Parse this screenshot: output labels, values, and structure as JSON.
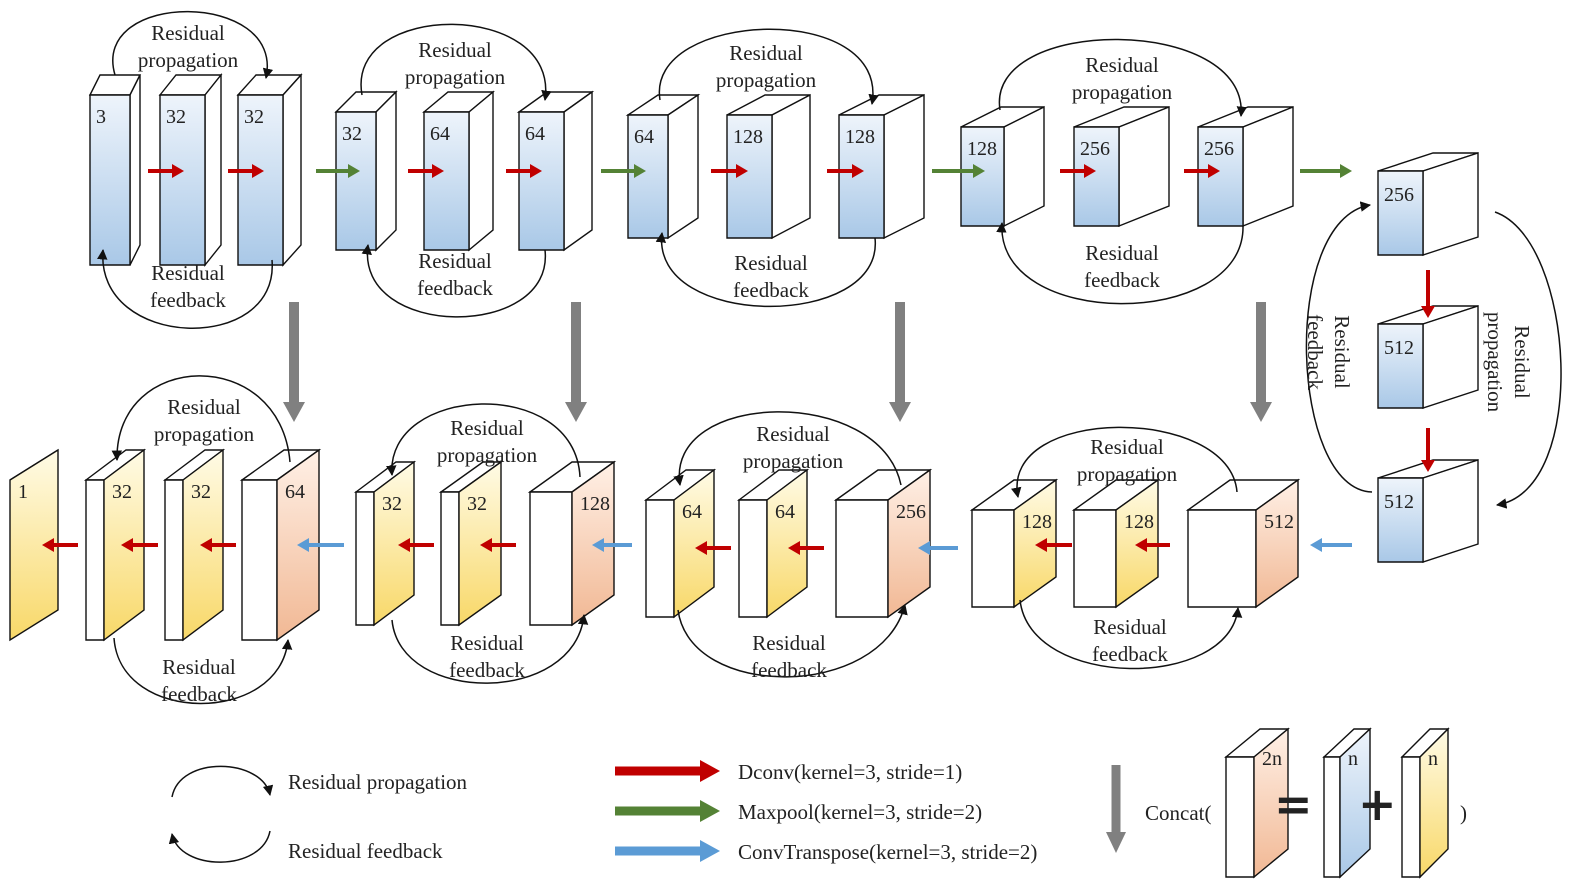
{
  "colors": {
    "blue_light": "#eef4fb",
    "blue_dark": "#a9c8e7",
    "yellow_light": "#fffbe6",
    "yellow_dark": "#f8d868",
    "orange_light": "#fff0e6",
    "orange_dark": "#f1b894",
    "dconv_arrow": "#c00000",
    "maxpool_arrow": "#548235",
    "convtranspose_arrow": "#5b9bd5",
    "concat_arrow": "#808080"
  },
  "labels": {
    "residual": "Residual",
    "propagation": "propagation",
    "feedback": "feedback"
  },
  "encoder": [
    {
      "name": "enc-stage-1",
      "channels": [
        "3",
        "32",
        "32"
      ]
    },
    {
      "name": "enc-stage-2",
      "channels": [
        "32",
        "64",
        "64"
      ]
    },
    {
      "name": "enc-stage-3",
      "channels": [
        "64",
        "128",
        "128"
      ]
    },
    {
      "name": "enc-stage-4",
      "channels": [
        "128",
        "256",
        "256"
      ]
    }
  ],
  "bottleneck": {
    "channels": [
      "256",
      "512",
      "512"
    ]
  },
  "decoder": [
    {
      "name": "dec-stage-4",
      "channels": [
        "512",
        "128",
        "128"
      ]
    },
    {
      "name": "dec-stage-3",
      "channels": [
        "256",
        "64",
        "64"
      ]
    },
    {
      "name": "dec-stage-2",
      "channels": [
        "128",
        "32",
        "32"
      ]
    },
    {
      "name": "dec-stage-1",
      "channels": [
        "64",
        "32",
        "32",
        "1"
      ]
    }
  ],
  "legend": {
    "residual_propagation": "Residual propagation",
    "residual_feedback": "Residual feedback",
    "dconv": "Dconv(kernel=3, stride=1)",
    "maxpool": "Maxpool(kernel=3, stride=2)",
    "convtranspose": "ConvTranspose(kernel=3, stride=2)",
    "concat_prefix": "Concat(",
    "concat_suffix": ")",
    "concat_out": "2n",
    "concat_in_a": "n",
    "concat_in_b": "n"
  }
}
